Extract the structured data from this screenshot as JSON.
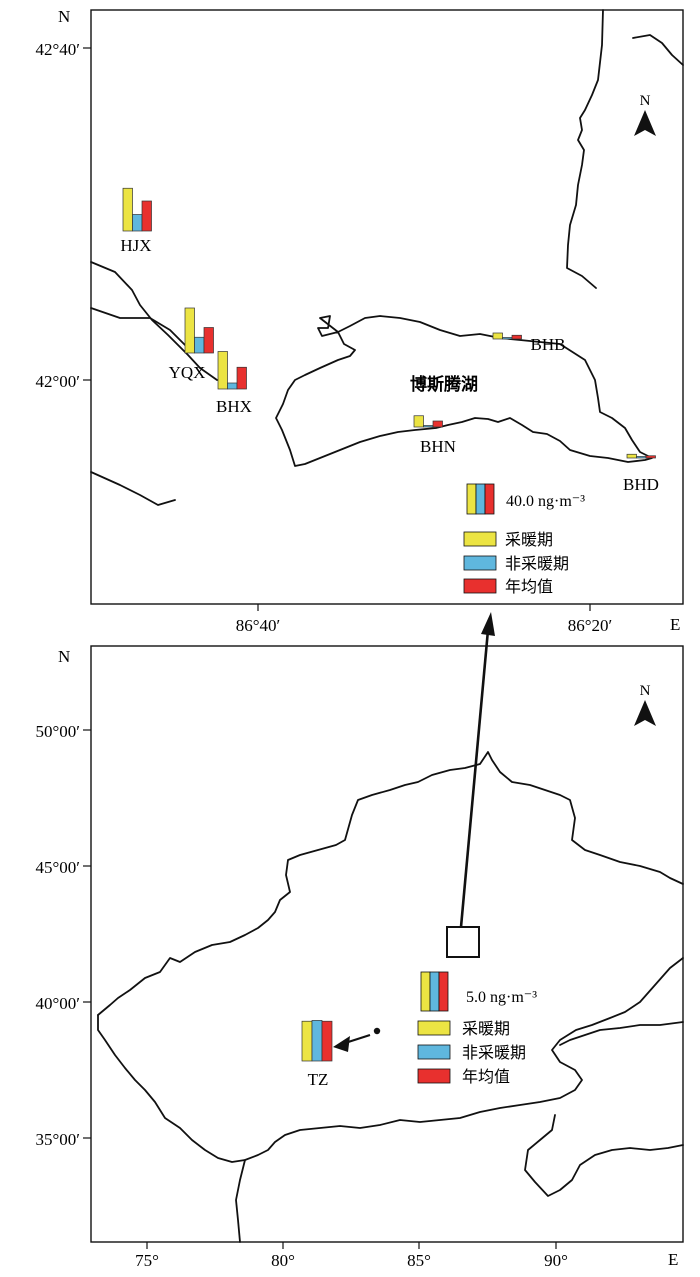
{
  "colors": {
    "heating": "#ece443",
    "non_heating": "#5fb7de",
    "annual": "#e8302e",
    "outline": "#111111"
  },
  "upper_map": {
    "compass_label": "N",
    "axis_north_label": "N",
    "axis_east_label": "E",
    "lat_ticks": [
      "42°40′",
      "42°00′"
    ],
    "lon_ticks": [
      "86°40′",
      "86°20′"
    ],
    "lake_name": "博斯腾湖",
    "scale_label": "40.0 ng·m⁻³",
    "legend": [
      "采暖期",
      "非采暖期",
      "年均值"
    ],
    "stations": [
      {
        "name": "HJX",
        "heating": 57,
        "non_heating": 22,
        "annual": 40
      },
      {
        "name": "YQX",
        "heating": 60,
        "non_heating": 21,
        "annual": 34
      },
      {
        "name": "BHX",
        "heating": 50,
        "non_heating": 8,
        "annual": 29
      },
      {
        "name": "BHB",
        "heating": 8,
        "non_heating": 2,
        "annual": 5
      },
      {
        "name": "BHN",
        "heating": 15,
        "non_heating": 2,
        "annual": 8
      },
      {
        "name": "BHD",
        "heating": 5,
        "non_heating": 2,
        "annual": 3
      }
    ]
  },
  "lower_map": {
    "compass_label": "N",
    "axis_north_label": "N",
    "axis_east_label": "E",
    "lat_ticks": [
      "50°00′",
      "45°00′",
      "40°00′",
      "35°00′"
    ],
    "lon_ticks": [
      "75°",
      "80°",
      "85°",
      "90°"
    ],
    "scale_label": "5.0 ng·m⁻³",
    "legend": [
      "采暖期",
      "非采暖期",
      "年均值"
    ],
    "stations": [
      {
        "name": "TZ",
        "heating": 5.1,
        "non_heating": 5.2,
        "annual": 5.1
      }
    ]
  }
}
